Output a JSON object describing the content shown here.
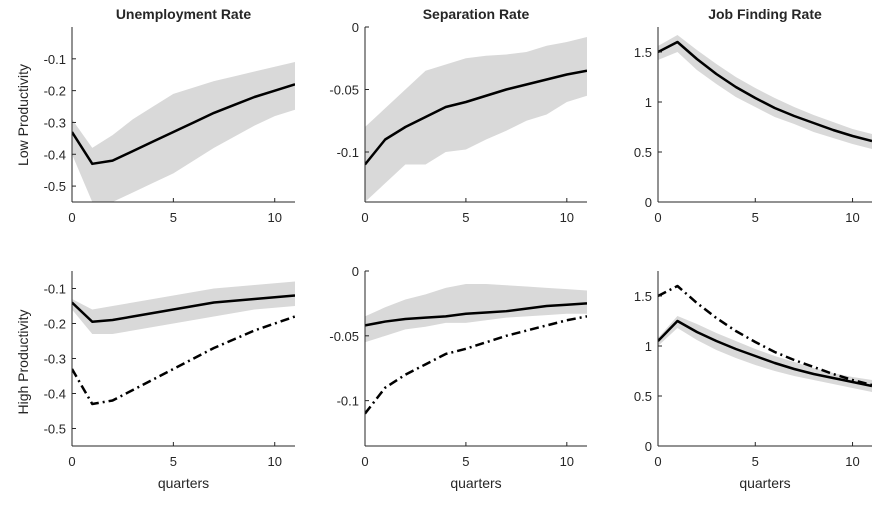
{
  "chart_data": [
    {
      "type": "line",
      "row": "Low Productivity",
      "title": "Unemployment Rate",
      "xlabel": "",
      "xlim": [
        0,
        11
      ],
      "ylim": [
        -0.55,
        0.0
      ],
      "xticks": [
        0,
        5,
        10
      ],
      "yticks": [
        -0.5,
        -0.4,
        -0.3,
        -0.2,
        -0.1
      ],
      "ytick_labels": [
        "-0.5",
        "-0.4",
        "-0.3",
        "-0.2",
        "-0.1"
      ],
      "x": [
        0,
        1,
        2,
        3,
        4,
        5,
        6,
        7,
        8,
        9,
        10,
        11
      ],
      "band": {
        "lower": [
          -0.4,
          -0.55,
          -0.55,
          -0.52,
          -0.49,
          -0.46,
          -0.42,
          -0.38,
          -0.345,
          -0.31,
          -0.28,
          -0.26
        ],
        "upper": [
          -0.29,
          -0.38,
          -0.34,
          -0.29,
          -0.25,
          -0.21,
          -0.19,
          -0.17,
          -0.155,
          -0.14,
          -0.125,
          -0.11
        ]
      },
      "series": [
        {
          "values": [
            -0.33,
            -0.43,
            -0.42,
            -0.39,
            -0.36,
            -0.33,
            -0.3,
            -0.27,
            -0.245,
            -0.22,
            -0.2,
            -0.18
          ],
          "style": "solid"
        }
      ]
    },
    {
      "type": "line",
      "row": "Low Productivity",
      "title": "Separation Rate",
      "xlabel": "",
      "xlim": [
        0,
        11
      ],
      "ylim": [
        -0.14,
        0.0
      ],
      "xticks": [
        0,
        5,
        10
      ],
      "yticks": [
        -0.1,
        -0.05,
        0
      ],
      "ytick_labels": [
        "-0.1",
        "-0.05",
        "0"
      ],
      "x": [
        0,
        1,
        2,
        3,
        4,
        5,
        6,
        7,
        8,
        9,
        10,
        11
      ],
      "band": {
        "lower": [
          -0.14,
          -0.125,
          -0.11,
          -0.11,
          -0.1,
          -0.098,
          -0.09,
          -0.083,
          -0.075,
          -0.07,
          -0.06,
          -0.055
        ],
        "upper": [
          -0.08,
          -0.065,
          -0.05,
          -0.035,
          -0.03,
          -0.025,
          -0.023,
          -0.022,
          -0.02,
          -0.015,
          -0.012,
          -0.008
        ]
      },
      "series": [
        {
          "values": [
            -0.11,
            -0.09,
            -0.08,
            -0.072,
            -0.064,
            -0.06,
            -0.055,
            -0.05,
            -0.046,
            -0.042,
            -0.038,
            -0.035
          ],
          "style": "solid"
        }
      ]
    },
    {
      "type": "line",
      "row": "Low Productivity",
      "title": "Job Finding Rate",
      "xlabel": "",
      "xlim": [
        0,
        11
      ],
      "ylim": [
        0,
        1.75
      ],
      "xticks": [
        0,
        5,
        10
      ],
      "yticks": [
        0,
        0.5,
        1,
        1.5
      ],
      "ytick_labels": [
        "0",
        "0.5",
        "1",
        "1.5"
      ],
      "x": [
        0,
        1,
        2,
        3,
        4,
        5,
        6,
        7,
        8,
        9,
        10,
        11
      ],
      "band": {
        "lower": [
          1.42,
          1.5,
          1.32,
          1.18,
          1.05,
          0.95,
          0.85,
          0.78,
          0.7,
          0.64,
          0.58,
          0.53
        ],
        "upper": [
          1.56,
          1.67,
          1.52,
          1.38,
          1.25,
          1.14,
          1.04,
          0.95,
          0.87,
          0.8,
          0.73,
          0.68
        ]
      },
      "series": [
        {
          "values": [
            1.5,
            1.6,
            1.43,
            1.28,
            1.15,
            1.04,
            0.94,
            0.86,
            0.79,
            0.72,
            0.66,
            0.61
          ],
          "style": "solid"
        }
      ]
    },
    {
      "type": "line",
      "row": "High Productivity",
      "title": "",
      "xlabel": "quarters",
      "xlim": [
        0,
        11
      ],
      "ylim": [
        -0.55,
        -0.05
      ],
      "xticks": [
        0,
        5,
        10
      ],
      "yticks": [
        -0.5,
        -0.4,
        -0.3,
        -0.2,
        -0.1
      ],
      "ytick_labels": [
        "-0.5",
        "-0.4",
        "-0.3",
        "-0.2",
        "-0.1"
      ],
      "x": [
        0,
        1,
        2,
        3,
        4,
        5,
        6,
        7,
        8,
        9,
        10,
        11
      ],
      "band": {
        "lower": [
          -0.16,
          -0.23,
          -0.23,
          -0.22,
          -0.21,
          -0.2,
          -0.19,
          -0.18,
          -0.17,
          -0.16,
          -0.155,
          -0.15
        ],
        "upper": [
          -0.13,
          -0.16,
          -0.15,
          -0.14,
          -0.13,
          -0.12,
          -0.11,
          -0.1,
          -0.095,
          -0.09,
          -0.085,
          -0.08
        ]
      },
      "series": [
        {
          "values": [
            -0.14,
            -0.195,
            -0.19,
            -0.18,
            -0.17,
            -0.16,
            -0.15,
            -0.14,
            -0.135,
            -0.13,
            -0.125,
            -0.12
          ],
          "style": "solid"
        },
        {
          "values": [
            -0.33,
            -0.43,
            -0.42,
            -0.39,
            -0.36,
            -0.33,
            -0.3,
            -0.27,
            -0.245,
            -0.22,
            -0.2,
            -0.18
          ],
          "style": "dashdot"
        }
      ]
    },
    {
      "type": "line",
      "row": "High Productivity",
      "title": "",
      "xlabel": "quarters",
      "xlim": [
        0,
        11
      ],
      "ylim": [
        -0.135,
        0.0
      ],
      "xticks": [
        0,
        5,
        10
      ],
      "yticks": [
        -0.1,
        -0.05,
        0
      ],
      "ytick_labels": [
        "-0.1",
        "-0.05",
        "0"
      ],
      "x": [
        0,
        1,
        2,
        3,
        4,
        5,
        6,
        7,
        8,
        9,
        10,
        11
      ],
      "band": {
        "lower": [
          -0.055,
          -0.05,
          -0.045,
          -0.043,
          -0.04,
          -0.04,
          -0.038,
          -0.036,
          -0.035,
          -0.034,
          -0.033,
          -0.033
        ],
        "upper": [
          -0.035,
          -0.028,
          -0.022,
          -0.018,
          -0.013,
          -0.01,
          -0.01,
          -0.011,
          -0.012,
          -0.013,
          -0.014,
          -0.015
        ]
      },
      "series": [
        {
          "values": [
            -0.042,
            -0.039,
            -0.037,
            -0.036,
            -0.035,
            -0.033,
            -0.032,
            -0.031,
            -0.029,
            -0.027,
            -0.026,
            -0.025
          ],
          "style": "solid"
        },
        {
          "values": [
            -0.11,
            -0.09,
            -0.08,
            -0.072,
            -0.064,
            -0.06,
            -0.055,
            -0.05,
            -0.046,
            -0.042,
            -0.038,
            -0.035
          ],
          "style": "dashdot"
        }
      ]
    },
    {
      "type": "line",
      "row": "High Productivity",
      "title": "",
      "xlabel": "quarters",
      "xlim": [
        0,
        11
      ],
      "ylim": [
        0,
        1.75
      ],
      "xticks": [
        0,
        5,
        10
      ],
      "yticks": [
        0,
        0.5,
        1,
        1.5
      ],
      "ytick_labels": [
        "0",
        "0.5",
        "1",
        "1.5"
      ],
      "x": [
        0,
        1,
        2,
        3,
        4,
        5,
        6,
        7,
        8,
        9,
        10,
        11
      ],
      "band": {
        "lower": [
          1.0,
          1.18,
          1.06,
          0.96,
          0.88,
          0.81,
          0.75,
          0.7,
          0.66,
          0.62,
          0.58,
          0.54
        ],
        "upper": [
          1.08,
          1.3,
          1.22,
          1.13,
          1.05,
          0.97,
          0.9,
          0.84,
          0.78,
          0.73,
          0.69,
          0.66
        ]
      },
      "series": [
        {
          "values": [
            1.05,
            1.25,
            1.14,
            1.05,
            0.97,
            0.9,
            0.83,
            0.77,
            0.72,
            0.68,
            0.64,
            0.6
          ],
          "style": "solid"
        },
        {
          "values": [
            1.5,
            1.6,
            1.43,
            1.28,
            1.15,
            1.04,
            0.94,
            0.86,
            0.79,
            0.72,
            0.66,
            0.61
          ],
          "style": "dashdot"
        }
      ]
    }
  ],
  "row_labels": [
    "Low Productivity",
    "High Productivity"
  ],
  "colors": {
    "band": "#d9d9d9",
    "line": "#000000",
    "axis": "#262626",
    "text": "#262626"
  }
}
